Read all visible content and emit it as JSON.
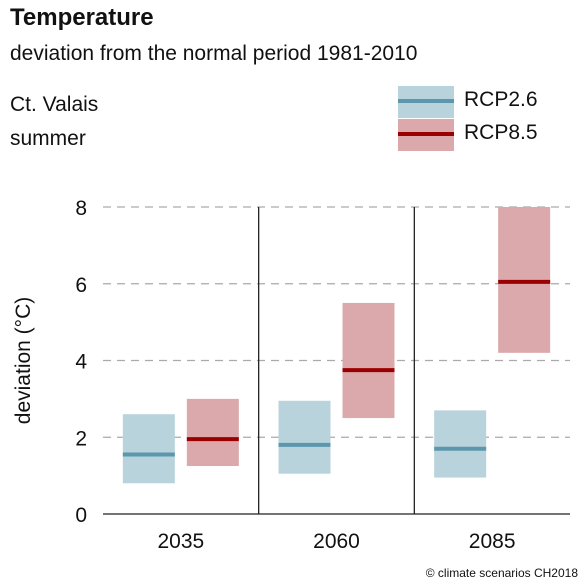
{
  "header": {
    "title": "Temperature",
    "subtitle": "deviation from the normal period 1981-2010",
    "region": "Ct. Valais",
    "season": "summer"
  },
  "credit": "© climate scenarios CH2018",
  "legend": [
    {
      "label": "RCP2.6",
      "fill": "#b8d3db",
      "line": "#5d97ad"
    },
    {
      "label": "RCP8.5",
      "fill": "#dba8ab",
      "line": "#9b0000"
    }
  ],
  "chart_data": {
    "type": "box",
    "ylabel": "deviation (°C)",
    "ylim": [
      0,
      8
    ],
    "yticks": [
      0,
      2,
      4,
      6,
      8
    ],
    "categories": [
      "2035",
      "2060",
      "2085"
    ],
    "series": [
      {
        "name": "RCP2.6",
        "fill": "#b8d3db",
        "line": "#5d97ad",
        "values": [
          {
            "low": 0.8,
            "median": 1.55,
            "high": 2.6
          },
          {
            "low": 1.05,
            "median": 1.8,
            "high": 2.95
          },
          {
            "low": 0.95,
            "median": 1.7,
            "high": 2.7
          }
        ]
      },
      {
        "name": "RCP8.5",
        "fill": "#dba8ab",
        "line": "#9b0000",
        "values": [
          {
            "low": 1.25,
            "median": 1.95,
            "high": 3.0
          },
          {
            "low": 2.5,
            "median": 3.75,
            "high": 5.5
          },
          {
            "low": 4.2,
            "median": 6.05,
            "high": 8.0
          }
        ]
      }
    ]
  }
}
